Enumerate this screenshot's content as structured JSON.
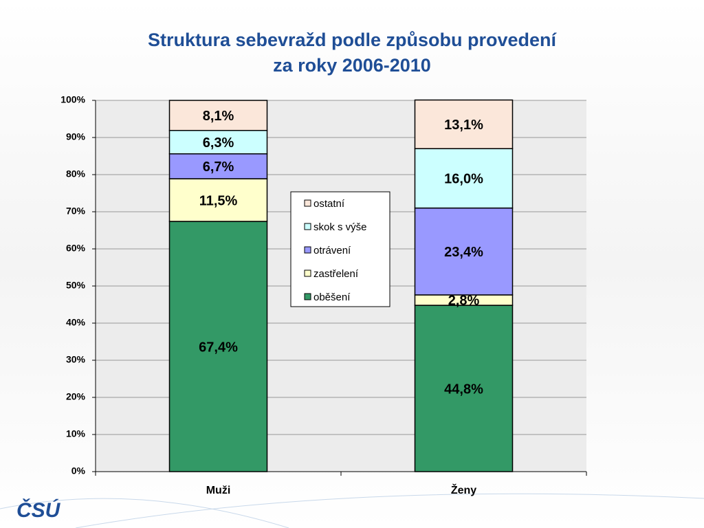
{
  "chart_data": {
    "type": "stacked_bar",
    "title": [
      "Struktura sebevražd podle způsobu provedení",
      "za roky 2006-2010"
    ],
    "categories": [
      "Muži",
      "Ženy"
    ],
    "series": [
      {
        "name": "oběšení",
        "color": "#339966",
        "values": [
          67.4,
          44.8
        ],
        "value_labels": [
          "67,4%",
          "44,8%"
        ]
      },
      {
        "name": "zastřelení",
        "color": "#ffffcc",
        "values": [
          11.5,
          2.8
        ],
        "value_labels": [
          "11,5%",
          "2,8%"
        ]
      },
      {
        "name": "otrávení",
        "color": "#9999ff",
        "values": [
          6.7,
          23.4
        ],
        "value_labels": [
          "6,7%",
          "23,4%"
        ]
      },
      {
        "name": "skok s výše",
        "color": "#ccffff",
        "values": [
          6.3,
          16.0
        ],
        "value_labels": [
          "6,3%",
          "16,0%"
        ]
      },
      {
        "name": "ostatní",
        "color": "#fbe7da",
        "values": [
          8.1,
          13.1
        ],
        "value_labels": [
          "8,1%",
          "13,1%"
        ]
      }
    ],
    "ylim": [
      0,
      100
    ],
    "yticks": [
      {
        "value": 0,
        "label": "0%"
      },
      {
        "value": 10,
        "label": "10%"
      },
      {
        "value": 20,
        "label": "20%"
      },
      {
        "value": 30,
        "label": "30%"
      },
      {
        "value": 40,
        "label": "40%"
      },
      {
        "value": 50,
        "label": "50%"
      },
      {
        "value": 60,
        "label": "60%"
      },
      {
        "value": 70,
        "label": "70%"
      },
      {
        "value": 80,
        "label": "80%"
      },
      {
        "value": 90,
        "label": "90%"
      },
      {
        "value": 100,
        "label": "100%"
      }
    ],
    "grid": true,
    "legend": "center",
    "logo": "ČSÚ"
  }
}
